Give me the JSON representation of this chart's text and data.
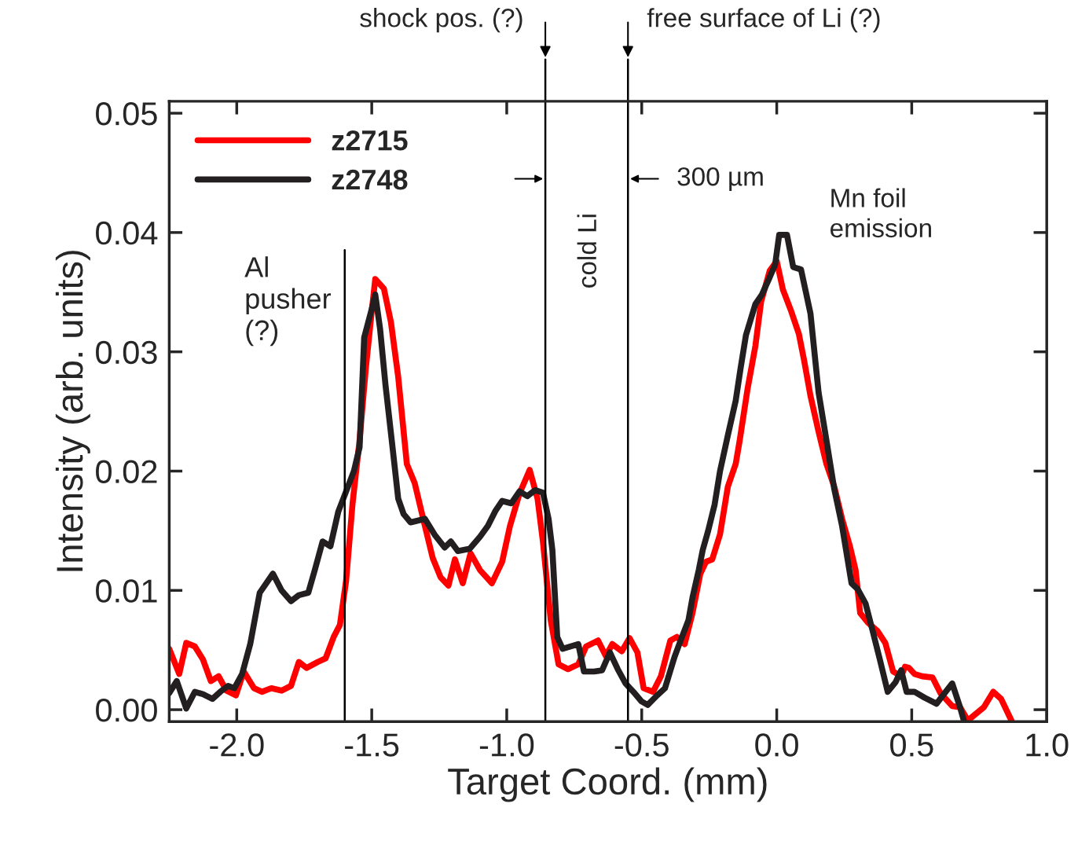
{
  "chart_data": {
    "type": "line",
    "xlabel": "Target Coord. (mm)",
    "ylabel": "Intensity (arb. units)",
    "xlim": [
      -2.25,
      1.0
    ],
    "ylim": [
      -0.001,
      0.051
    ],
    "xticks": [
      {
        "value": -2.0,
        "label": "-2.0"
      },
      {
        "value": -1.5,
        "label": "-1.5"
      },
      {
        "value": -1.0,
        "label": "-1.0"
      },
      {
        "value": -0.5,
        "label": "-0.5"
      },
      {
        "value": 0.0,
        "label": "0.0"
      },
      {
        "value": 0.5,
        "label": "0.5"
      },
      {
        "value": 1.0,
        "label": "1.0"
      }
    ],
    "yticks": [
      {
        "value": 0.0,
        "label": "0.00"
      },
      {
        "value": 0.01,
        "label": "0.01"
      },
      {
        "value": 0.02,
        "label": "0.02"
      },
      {
        "value": 0.03,
        "label": "0.03"
      },
      {
        "value": 0.04,
        "label": "0.04"
      },
      {
        "value": 0.05,
        "label": "0.05"
      }
    ],
    "grid": false,
    "legend": "top left",
    "marker": "none",
    "line_style": "solid",
    "series": [
      {
        "name": "z2715",
        "color": "#ff0000",
        "x": [
          -2.25,
          -2.213,
          -2.187,
          -2.155,
          -2.125,
          -2.096,
          -2.067,
          -2.038,
          -2.003,
          -1.974,
          -1.936,
          -1.907,
          -1.872,
          -1.834,
          -1.799,
          -1.77,
          -1.741,
          -1.7,
          -1.671,
          -1.641,
          -1.618,
          -1.595,
          -1.571,
          -1.545,
          -1.522,
          -1.501,
          -1.487,
          -1.455,
          -1.429,
          -1.402,
          -1.37,
          -1.341,
          -1.303,
          -1.274,
          -1.245,
          -1.216,
          -1.192,
          -1.163,
          -1.134,
          -1.099,
          -1.055,
          -1.017,
          -0.988,
          -0.953,
          -0.915,
          -0.886,
          -0.866,
          -0.837,
          -0.808,
          -0.773,
          -0.735,
          -0.706,
          -0.662,
          -0.633,
          -0.609,
          -0.574,
          -0.545,
          -0.516,
          -0.493,
          -0.458,
          -0.429,
          -0.394,
          -0.37,
          -0.341,
          -0.312,
          -0.283,
          -0.262,
          -0.239,
          -0.21,
          -0.181,
          -0.152,
          -0.137,
          -0.108,
          -0.079,
          -0.058,
          -0.026,
          0.0,
          0.023,
          0.052,
          0.082,
          0.102,
          0.125,
          0.155,
          0.184,
          0.213,
          0.242,
          0.271,
          0.292,
          0.309,
          0.338,
          0.373,
          0.402,
          0.431,
          0.461,
          0.475,
          0.49,
          0.51,
          0.539,
          0.577,
          0.606,
          0.65,
          0.679,
          0.708,
          0.767,
          0.802,
          0.831,
          0.869
        ],
        "values": [
          0.0051,
          0.003,
          0.0056,
          0.0053,
          0.0042,
          0.0024,
          0.0028,
          0.0016,
          0.0012,
          0.0032,
          0.0018,
          0.0015,
          0.0018,
          0.0016,
          0.002,
          0.004,
          0.0035,
          0.004,
          0.0043,
          0.0061,
          0.0071,
          0.0108,
          0.0173,
          0.0226,
          0.0286,
          0.0332,
          0.0361,
          0.0353,
          0.0325,
          0.0279,
          0.0206,
          0.019,
          0.0154,
          0.0127,
          0.0111,
          0.0104,
          0.0126,
          0.0106,
          0.0131,
          0.0117,
          0.0106,
          0.0124,
          0.0154,
          0.0181,
          0.0201,
          0.0177,
          0.0141,
          0.0075,
          0.0038,
          0.0034,
          0.0038,
          0.0053,
          0.0058,
          0.0045,
          0.0055,
          0.0049,
          0.006,
          0.0048,
          0.0018,
          0.0015,
          0.0028,
          0.0058,
          0.0061,
          0.0055,
          0.0081,
          0.0114,
          0.0124,
          0.0126,
          0.0147,
          0.0187,
          0.0206,
          0.0226,
          0.0269,
          0.0305,
          0.0342,
          0.0368,
          0.0376,
          0.0352,
          0.0335,
          0.0315,
          0.0292,
          0.0263,
          0.0233,
          0.0206,
          0.0187,
          0.016,
          0.0137,
          0.0117,
          0.0081,
          0.0073,
          0.0066,
          0.0056,
          0.0032,
          0.0028,
          0.0036,
          0.0035,
          0.003,
          0.0028,
          0.0027,
          0.0014,
          0.0003,
          0.0002,
          -0.0009,
          0.0002,
          0.0015,
          0.0009,
          -0.0009
        ]
      },
      {
        "name": "z2748",
        "color": "#231f20",
        "x": [
          -2.25,
          -2.222,
          -2.187,
          -2.155,
          -2.125,
          -2.09,
          -2.061,
          -2.032,
          -2.009,
          -1.98,
          -1.95,
          -1.915,
          -1.866,
          -1.834,
          -1.799,
          -1.77,
          -1.735,
          -1.711,
          -1.682,
          -1.653,
          -1.624,
          -1.595,
          -1.566,
          -1.545,
          -1.528,
          -1.501,
          -1.487,
          -1.469,
          -1.449,
          -1.426,
          -1.402,
          -1.382,
          -1.356,
          -1.303,
          -1.265,
          -1.23,
          -1.207,
          -1.181,
          -1.137,
          -1.099,
          -1.07,
          -1.041,
          -1.017,
          -0.983,
          -0.953,
          -0.924,
          -0.895,
          -0.866,
          -0.845,
          -0.831,
          -0.813,
          -0.793,
          -0.764,
          -0.735,
          -0.714,
          -0.676,
          -0.647,
          -0.618,
          -0.589,
          -0.56,
          -0.531,
          -0.501,
          -0.478,
          -0.443,
          -0.414,
          -0.379,
          -0.356,
          -0.327,
          -0.312,
          -0.289,
          -0.274,
          -0.254,
          -0.23,
          -0.21,
          -0.181,
          -0.152,
          -0.134,
          -0.114,
          -0.079,
          -0.055,
          -0.029,
          -0.006,
          0.009,
          0.038,
          0.061,
          0.09,
          0.125,
          0.155,
          0.184,
          0.213,
          0.242,
          0.277,
          0.3,
          0.329,
          0.353,
          0.382,
          0.411,
          0.44,
          0.461,
          0.481,
          0.51,
          0.548,
          0.592,
          0.612,
          0.65,
          0.679,
          0.694
        ],
        "values": [
          0.0014,
          0.0024,
          0.0001,
          0.0015,
          0.0013,
          0.0009,
          0.0015,
          0.002,
          0.0018,
          0.003,
          0.0055,
          0.0098,
          0.0114,
          0.01,
          0.0091,
          0.0096,
          0.0098,
          0.0117,
          0.0141,
          0.0137,
          0.0166,
          0.0183,
          0.02,
          0.022,
          0.0312,
          0.0335,
          0.0348,
          0.0319,
          0.0272,
          0.0226,
          0.0177,
          0.0164,
          0.0157,
          0.016,
          0.0146,
          0.0136,
          0.0141,
          0.0133,
          0.0135,
          0.0145,
          0.0154,
          0.0167,
          0.0175,
          0.0173,
          0.0183,
          0.0179,
          0.0184,
          0.0182,
          0.016,
          0.0134,
          0.0061,
          0.0051,
          0.0053,
          0.0055,
          0.0032,
          0.0032,
          0.0033,
          0.0048,
          0.0034,
          0.0022,
          0.0015,
          0.0007,
          0.0004,
          0.0012,
          0.0018,
          0.0044,
          0.0058,
          0.0075,
          0.0094,
          0.0117,
          0.0134,
          0.015,
          0.0172,
          0.02,
          0.023,
          0.0259,
          0.0286,
          0.0314,
          0.034,
          0.0348,
          0.0361,
          0.0373,
          0.0398,
          0.0398,
          0.0371,
          0.0369,
          0.0332,
          0.0266,
          0.0226,
          0.0185,
          0.0154,
          0.0106,
          0.0101,
          0.0089,
          0.0068,
          0.0042,
          0.0015,
          0.0023,
          0.0033,
          0.0015,
          0.0015,
          0.001,
          0.0005,
          0.0011,
          0.0022,
          0.0002,
          -0.001
        ]
      }
    ],
    "ref_lines": [
      {
        "axis": "x",
        "value": -1.6,
        "label": "Al\npusher\n(?)",
        "color": "#000000"
      },
      {
        "axis": "x",
        "value": -0.857,
        "label": "shock pos. (?)",
        "color": "#000000"
      },
      {
        "axis": "x",
        "value": -0.551,
        "label": "free surface of Li (?)",
        "color": "#000000"
      }
    ],
    "annotations": [
      "300 µm",
      "cold Li",
      "Mn foil\nemission"
    ]
  }
}
